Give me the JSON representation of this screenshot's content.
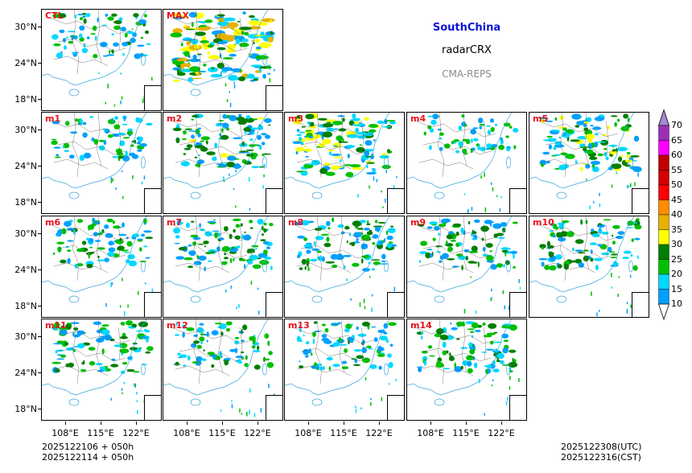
{
  "header": {
    "region": "SouthChina",
    "variable": "radarCRX",
    "model": "CMA-REPS"
  },
  "panels": [
    {
      "label": "CTL",
      "intensity": 0.35
    },
    {
      "label": "MAX",
      "intensity": 1.0
    },
    {
      "label": "m1",
      "intensity": 0.3
    },
    {
      "label": "m2",
      "intensity": 0.55
    },
    {
      "label": "m3",
      "intensity": 0.75
    },
    {
      "label": "m4",
      "intensity": 0.2
    },
    {
      "label": "m5",
      "intensity": 0.6
    },
    {
      "label": "m6",
      "intensity": 0.4
    },
    {
      "label": "m7",
      "intensity": 0.5
    },
    {
      "label": "m8",
      "intensity": 0.5
    },
    {
      "label": "m9",
      "intensity": 0.45
    },
    {
      "label": "m10",
      "intensity": 0.45
    },
    {
      "label": "m11",
      "intensity": 0.5
    },
    {
      "label": "m12",
      "intensity": 0.35
    },
    {
      "label": "m13",
      "intensity": 0.4
    },
    {
      "label": "m14",
      "intensity": 0.5
    }
  ],
  "axes": {
    "y_ticks": [
      "30°N",
      "24°N",
      "18°N"
    ],
    "x_ticks": [
      "108°E",
      "115°E",
      "122°E"
    ]
  },
  "colorbar": {
    "labels": [
      "70",
      "65",
      "60",
      "55",
      "50",
      "45",
      "40",
      "35",
      "30",
      "25",
      "20",
      "15",
      "10"
    ],
    "colors": [
      "#9b2fb5",
      "#ff00ff",
      "#c00000",
      "#d40000",
      "#ff0000",
      "#ff8c00",
      "#e8b000",
      "#ffff00",
      "#007f00",
      "#00c000",
      "#00d8ff",
      "#00a0ff"
    ],
    "over_color": "#a78ad4",
    "under_color": "#ffffff"
  },
  "footer": {
    "init_line1": "2025122106  +  050h",
    "init_line2": "2025122114  +  050h",
    "valid_utc": "2025122308(UTC)",
    "valid_cst": "2025122316(CST)"
  }
}
